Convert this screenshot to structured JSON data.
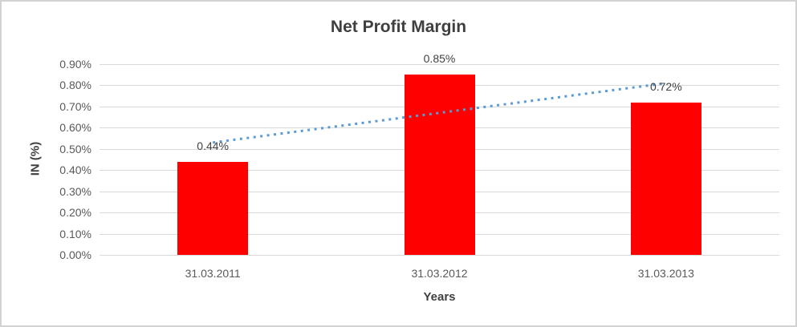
{
  "frame": {
    "background": "#ffffff",
    "border_color": "#d2d2d2"
  },
  "chart_data": {
    "type": "bar",
    "title": "Net Profit Margin",
    "xlabel": "Years",
    "ylabel": "IN (%)",
    "categories": [
      "31.03.2011",
      "31.03.2012",
      "31.03.2013"
    ],
    "values": [
      0.44,
      0.85,
      0.72
    ],
    "data_labels": [
      "0.44%",
      "0.85%",
      "0.72%"
    ],
    "ylim": [
      0.0,
      0.9
    ],
    "ytick_step": 0.1,
    "yticks": [
      {
        "value": 0.0,
        "label": "0.00%"
      },
      {
        "value": 0.1,
        "label": "0.10%"
      },
      {
        "value": 0.2,
        "label": "0.20%"
      },
      {
        "value": 0.3,
        "label": "0.30%"
      },
      {
        "value": 0.4,
        "label": "0.40%"
      },
      {
        "value": 0.5,
        "label": "0.50%"
      },
      {
        "value": 0.6,
        "label": "0.60%"
      },
      {
        "value": 0.7,
        "label": "0.70%"
      },
      {
        "value": 0.8,
        "label": "0.80%"
      },
      {
        "value": 0.9,
        "label": "0.90%"
      }
    ],
    "grid": true,
    "legend": "none",
    "colors": {
      "bar": "#FF0000",
      "trendline": "#5B9BD5",
      "gridline": "#D9D9D9",
      "tick_text": "#595959",
      "title_text": "#3F3F3F",
      "label_text": "#404040"
    },
    "trendline": {
      "type": "linear",
      "style": "dotted",
      "color": "#5B9BD5"
    }
  }
}
